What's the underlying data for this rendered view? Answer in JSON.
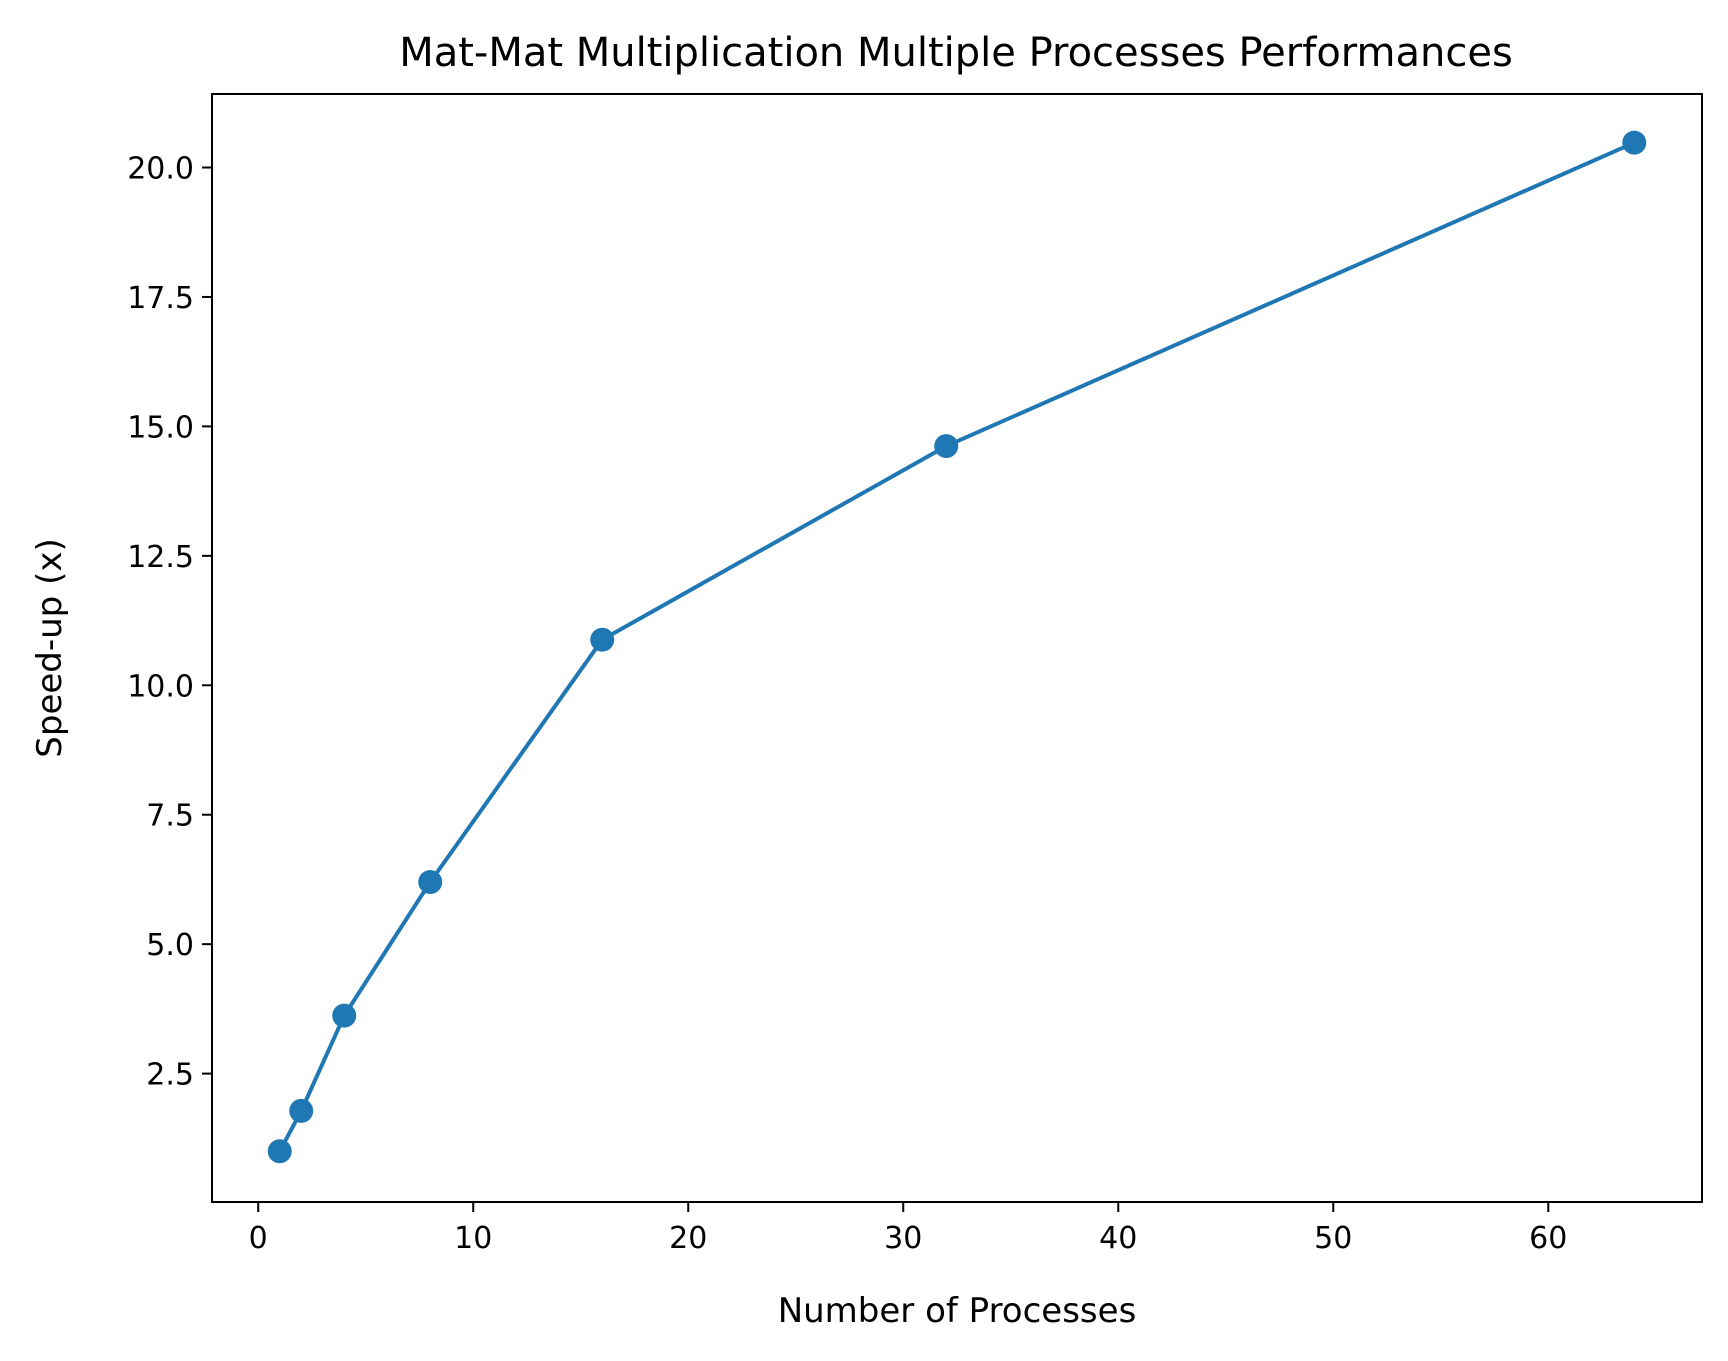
{
  "chart_data": {
    "type": "line",
    "title": "Mat-Mat Multiplication Multiple Processes Performances",
    "xlabel": "Number of Processes",
    "ylabel": "Speed-up (x)",
    "xlim": [
      -2.15,
      67.15
    ],
    "ylim": [
      0.02,
      21.42
    ],
    "x_ticks": [
      0,
      10,
      20,
      30,
      40,
      50,
      60
    ],
    "x_tick_labels": [
      "0",
      "10",
      "20",
      "30",
      "40",
      "50",
      "60"
    ],
    "y_ticks": [
      2.5,
      5.0,
      7.5,
      10.0,
      12.5,
      15.0,
      17.5,
      20.0
    ],
    "y_tick_labels": [
      "2.5",
      "5.0",
      "7.5",
      "10.0",
      "12.5",
      "15.0",
      "17.5",
      "20.0"
    ],
    "grid": false,
    "legend": "none",
    "series": [
      {
        "color": "#1f77b4",
        "marker": "circle",
        "x": [
          1,
          2,
          4,
          8,
          16,
          32,
          64
        ],
        "y": [
          1.0,
          1.78,
          3.62,
          6.2,
          10.88,
          14.62,
          20.48
        ]
      }
    ]
  }
}
